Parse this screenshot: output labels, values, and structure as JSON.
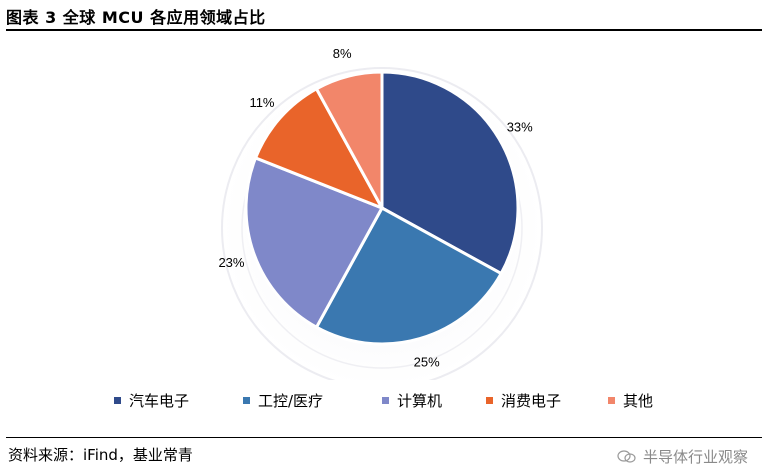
{
  "header": {
    "title": "图表 3 全球 MCU 各应用领域占比"
  },
  "footer": {
    "source": "资料来源：iFind，基业常青",
    "watermark": "半导体行业观察"
  },
  "chart_data": {
    "type": "pie",
    "title": "",
    "categories": [
      "汽车电子",
      "工控/医疗",
      "计算机",
      "消费电子",
      "其他"
    ],
    "values": [
      33,
      25,
      23,
      11,
      8
    ],
    "labels": [
      "33%",
      "25%",
      "23%",
      "11%",
      "8%"
    ],
    "colors": [
      "#2f4a8a",
      "#3a78b0",
      "#7f88c9",
      "#e9642a",
      "#f2866a"
    ],
    "start": "12 o'clock, clockwise",
    "legend_position": "bottom"
  }
}
